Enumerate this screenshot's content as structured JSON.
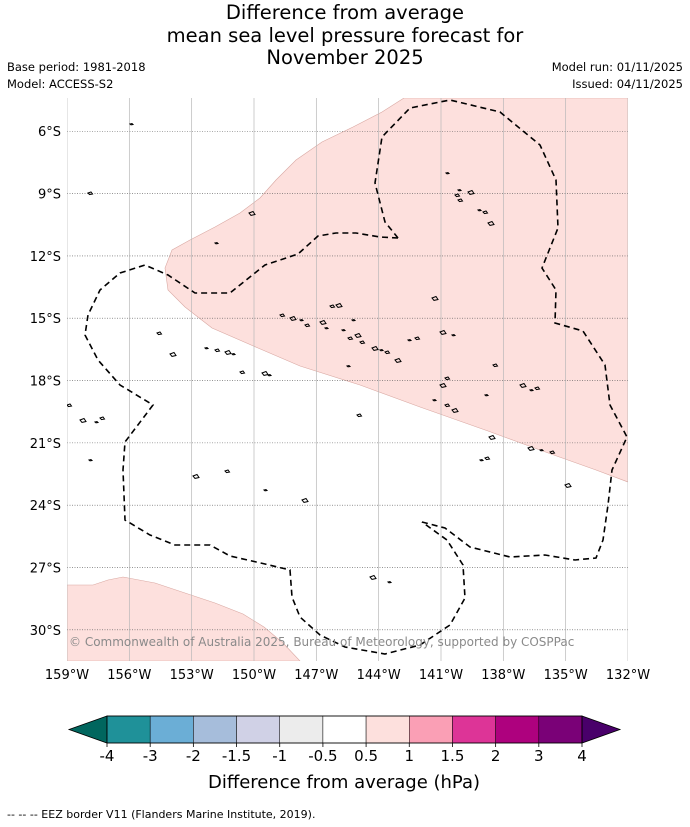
{
  "title": {
    "line1": "Difference from average",
    "line2": "mean sea level pressure forecast for",
    "line3": "November 2025"
  },
  "meta_left": {
    "base_period": "Base period: 1981-2018",
    "model": "Model: ACCESS-S2"
  },
  "meta_right": {
    "model_run": "Model run: 01/11/2025",
    "issued": "Issued: 04/11/2025"
  },
  "map": {
    "lat_labels": [
      "6°S",
      "9°S",
      "12°S",
      "15°S",
      "18°S",
      "21°S",
      "24°S",
      "27°S",
      "30°S"
    ],
    "lat_values": [
      -6,
      -9,
      -12,
      -15,
      -18,
      -21,
      -24,
      -27,
      -30
    ],
    "lon_labels": [
      "159°W",
      "156°W",
      "153°W",
      "150°W",
      "147°W",
      "144°W",
      "141°W",
      "138°W",
      "135°W",
      "132°W"
    ],
    "lon_values": [
      -159,
      -156,
      -153,
      -150,
      -147,
      -144,
      -141,
      -138,
      -135,
      -132
    ],
    "lat_range": [
      -31.5,
      -4.4
    ],
    "lon_range": [
      -159,
      -132
    ],
    "copyright": "© Commonwealth of Australia 2025, Bureau of Meteorology, supported by COSPPac",
    "anomaly_fill_color": "#fde0dd",
    "eez_line_color": "#000000"
  },
  "colorbar": {
    "tick_labels": [
      "-4",
      "-3",
      "-2",
      "-1.5",
      "-1",
      "-0.5",
      "0.5",
      "1",
      "1.5",
      "2",
      "3",
      "4"
    ],
    "colors": [
      "#01665e",
      "#1f9199",
      "#6baed6",
      "#a6bddb",
      "#d0d1e6",
      "#ececec",
      "#ffffff",
      "#fde0dd",
      "#fa9fb5",
      "#dd3497",
      "#ae017e",
      "#7a0177",
      "#49006a"
    ],
    "label": "Difference from average (hPa)"
  },
  "footnote": "-- -- -- EEZ border V11 (Flanders Marine Institute, 2019)."
}
